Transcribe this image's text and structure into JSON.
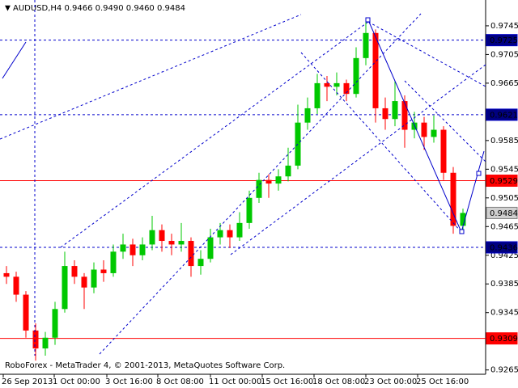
{
  "chart_data": {
    "type": "candlestick",
    "title": "AUDUSD,H4 0.9466 0.9490 0.9460 0.9484",
    "footer": "RoboForex - MetaTrader 4, © 2001-2013, MetaQuotes Software Corp.",
    "x_tick_labels": [
      "26 Sep 2013",
      "1 Oct 00:00",
      "3 Oct 16:00",
      "8 Oct 08:00",
      "11 Oct 00:00",
      "15 Oct 16:00",
      "18 Oct 08:00",
      "23 Oct 00:00",
      "25 Oct 16:00"
    ],
    "ylim": [
      0.9259,
      0.9781
    ],
    "yticks": [
      0.9745,
      0.9705,
      0.9665,
      0.9585,
      0.9545,
      0.9505,
      0.9465,
      0.9425,
      0.9385,
      0.9345,
      0.9265
    ],
    "up_color": "#00c800",
    "down_color": "#ff0000",
    "open": [
      0.94,
      0.9395,
      0.937,
      0.932,
      0.9295,
      0.931,
      0.935,
      0.941,
      0.9395,
      0.938,
      0.9405,
      0.94,
      0.943,
      0.944,
      0.9425,
      0.944,
      0.946,
      0.9445,
      0.944,
      0.9445,
      0.941,
      0.942,
      0.945,
      0.946,
      0.945,
      0.947,
      0.9505,
      0.953,
      0.9525,
      0.9535,
      0.955,
      0.961,
      0.963,
      0.9665,
      0.966,
      0.9665,
      0.965,
      0.97,
      0.9735,
      0.963,
      0.9615,
      0.964,
      0.96,
      0.961,
      0.959,
      0.96,
      0.954,
      0.9466
    ],
    "high": [
      0.941,
      0.9402,
      0.9375,
      0.933,
      0.9318,
      0.936,
      0.943,
      0.9418,
      0.94,
      0.9415,
      0.9418,
      0.944,
      0.9455,
      0.9448,
      0.945,
      0.948,
      0.9468,
      0.9455,
      0.947,
      0.945,
      0.9432,
      0.9462,
      0.947,
      0.9468,
      0.9485,
      0.9515,
      0.954,
      0.9538,
      0.9545,
      0.9575,
      0.9635,
      0.9645,
      0.9678,
      0.9675,
      0.968,
      0.967,
      0.9715,
      0.975,
      0.974,
      0.9645,
      0.9668,
      0.9648,
      0.9625,
      0.9618,
      0.962,
      0.9605,
      0.9548,
      0.949
    ],
    "low": [
      0.9385,
      0.936,
      0.931,
      0.9278,
      0.9285,
      0.93,
      0.9345,
      0.9385,
      0.935,
      0.9372,
      0.9388,
      0.9395,
      0.942,
      0.941,
      0.9418,
      0.9432,
      0.943,
      0.9425,
      0.943,
      0.9395,
      0.9398,
      0.9415,
      0.944,
      0.9435,
      0.9445,
      0.9462,
      0.9498,
      0.9505,
      0.9515,
      0.9528,
      0.9545,
      0.96,
      0.9622,
      0.964,
      0.9648,
      0.964,
      0.9645,
      0.969,
      0.961,
      0.96,
      0.9605,
      0.9575,
      0.9588,
      0.9572,
      0.9582,
      0.953,
      0.9455,
      0.946
    ],
    "close": [
      0.9395,
      0.937,
      0.932,
      0.9295,
      0.931,
      0.935,
      0.941,
      0.9395,
      0.938,
      0.9405,
      0.94,
      0.943,
      0.944,
      0.9425,
      0.944,
      0.946,
      0.9445,
      0.944,
      0.9445,
      0.941,
      0.942,
      0.945,
      0.946,
      0.945,
      0.947,
      0.9505,
      0.953,
      0.9525,
      0.9535,
      0.955,
      0.961,
      0.963,
      0.9665,
      0.966,
      0.9665,
      0.965,
      0.97,
      0.9735,
      0.963,
      0.9615,
      0.964,
      0.96,
      0.961,
      0.959,
      0.96,
      0.954,
      0.9466,
      0.9484
    ],
    "levels": [
      {
        "value": 0.9725,
        "color": "#0000cc",
        "line": "dashed",
        "label_bg": "#000080"
      },
      {
        "value": 0.9621,
        "color": "#0000cc",
        "line": "dashed",
        "label_bg": "#000080"
      },
      {
        "value": 0.9529,
        "color": "#ff0000",
        "line": "solid",
        "label_bg": "#ff0000"
      },
      {
        "value": 0.9484,
        "color": "#808080",
        "line": "none",
        "label_bg": "#d0d0d0"
      },
      {
        "value": 0.9436,
        "color": "#0000cc",
        "line": "dashed",
        "label_bg": "#000080"
      },
      {
        "value": 0.9309,
        "color": "#ff0000",
        "line": "solid",
        "label_bg": "#ff0000"
      }
    ]
  }
}
